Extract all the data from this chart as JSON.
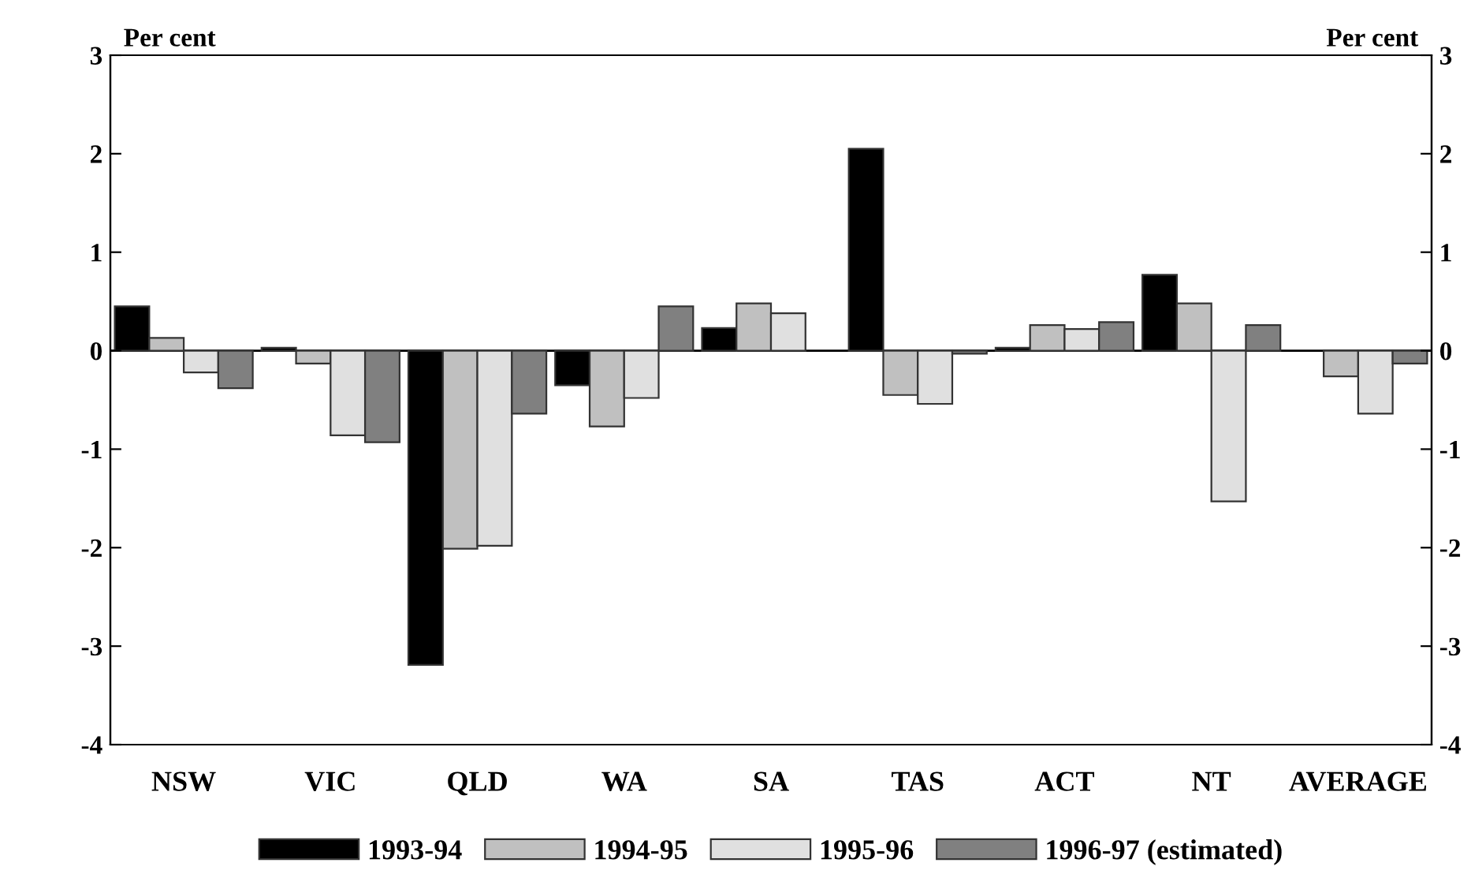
{
  "chart_data": {
    "type": "bar",
    "ylabel": "Per cent",
    "y2label": "Per cent",
    "categories": [
      "NSW",
      "VIC",
      "QLD",
      "WA",
      "SA",
      "TAS",
      "ACT",
      "NT",
      "AVERAGE"
    ],
    "series": [
      {
        "name": "1993-94",
        "color": "#000000",
        "values": [
          0.45,
          0.03,
          -3.19,
          -0.35,
          0.23,
          2.05,
          0.03,
          0.77,
          null
        ]
      },
      {
        "name": "1994-95",
        "color": "#c0c0c0",
        "values": [
          0.13,
          -0.13,
          -2.01,
          -0.77,
          0.48,
          -0.45,
          0.26,
          0.48,
          -0.26
        ]
      },
      {
        "name": "1995-96",
        "color": "#e0e0e0",
        "values": [
          -0.22,
          -0.86,
          -1.98,
          -0.48,
          0.38,
          -0.54,
          0.22,
          -1.53,
          -0.64
        ]
      },
      {
        "name": "1996-97 (estimated)",
        "color": "#808080",
        "values": [
          -0.38,
          -0.93,
          -0.64,
          0.45,
          null,
          -0.03,
          0.29,
          0.26,
          -0.13
        ]
      }
    ],
    "ylim": [
      -4,
      3
    ],
    "yticks": [
      -4,
      -3,
      -2,
      -1,
      0,
      1,
      2,
      3
    ],
    "y2lim": [
      -4,
      3
    ],
    "y2ticks": [
      -4,
      -3,
      -2,
      -1,
      0,
      1,
      2,
      3
    ],
    "ref_lines": [
      {
        "axis": "y",
        "value": 0,
        "color": "#000000"
      }
    ],
    "grid": false,
    "legend": "bottom"
  }
}
